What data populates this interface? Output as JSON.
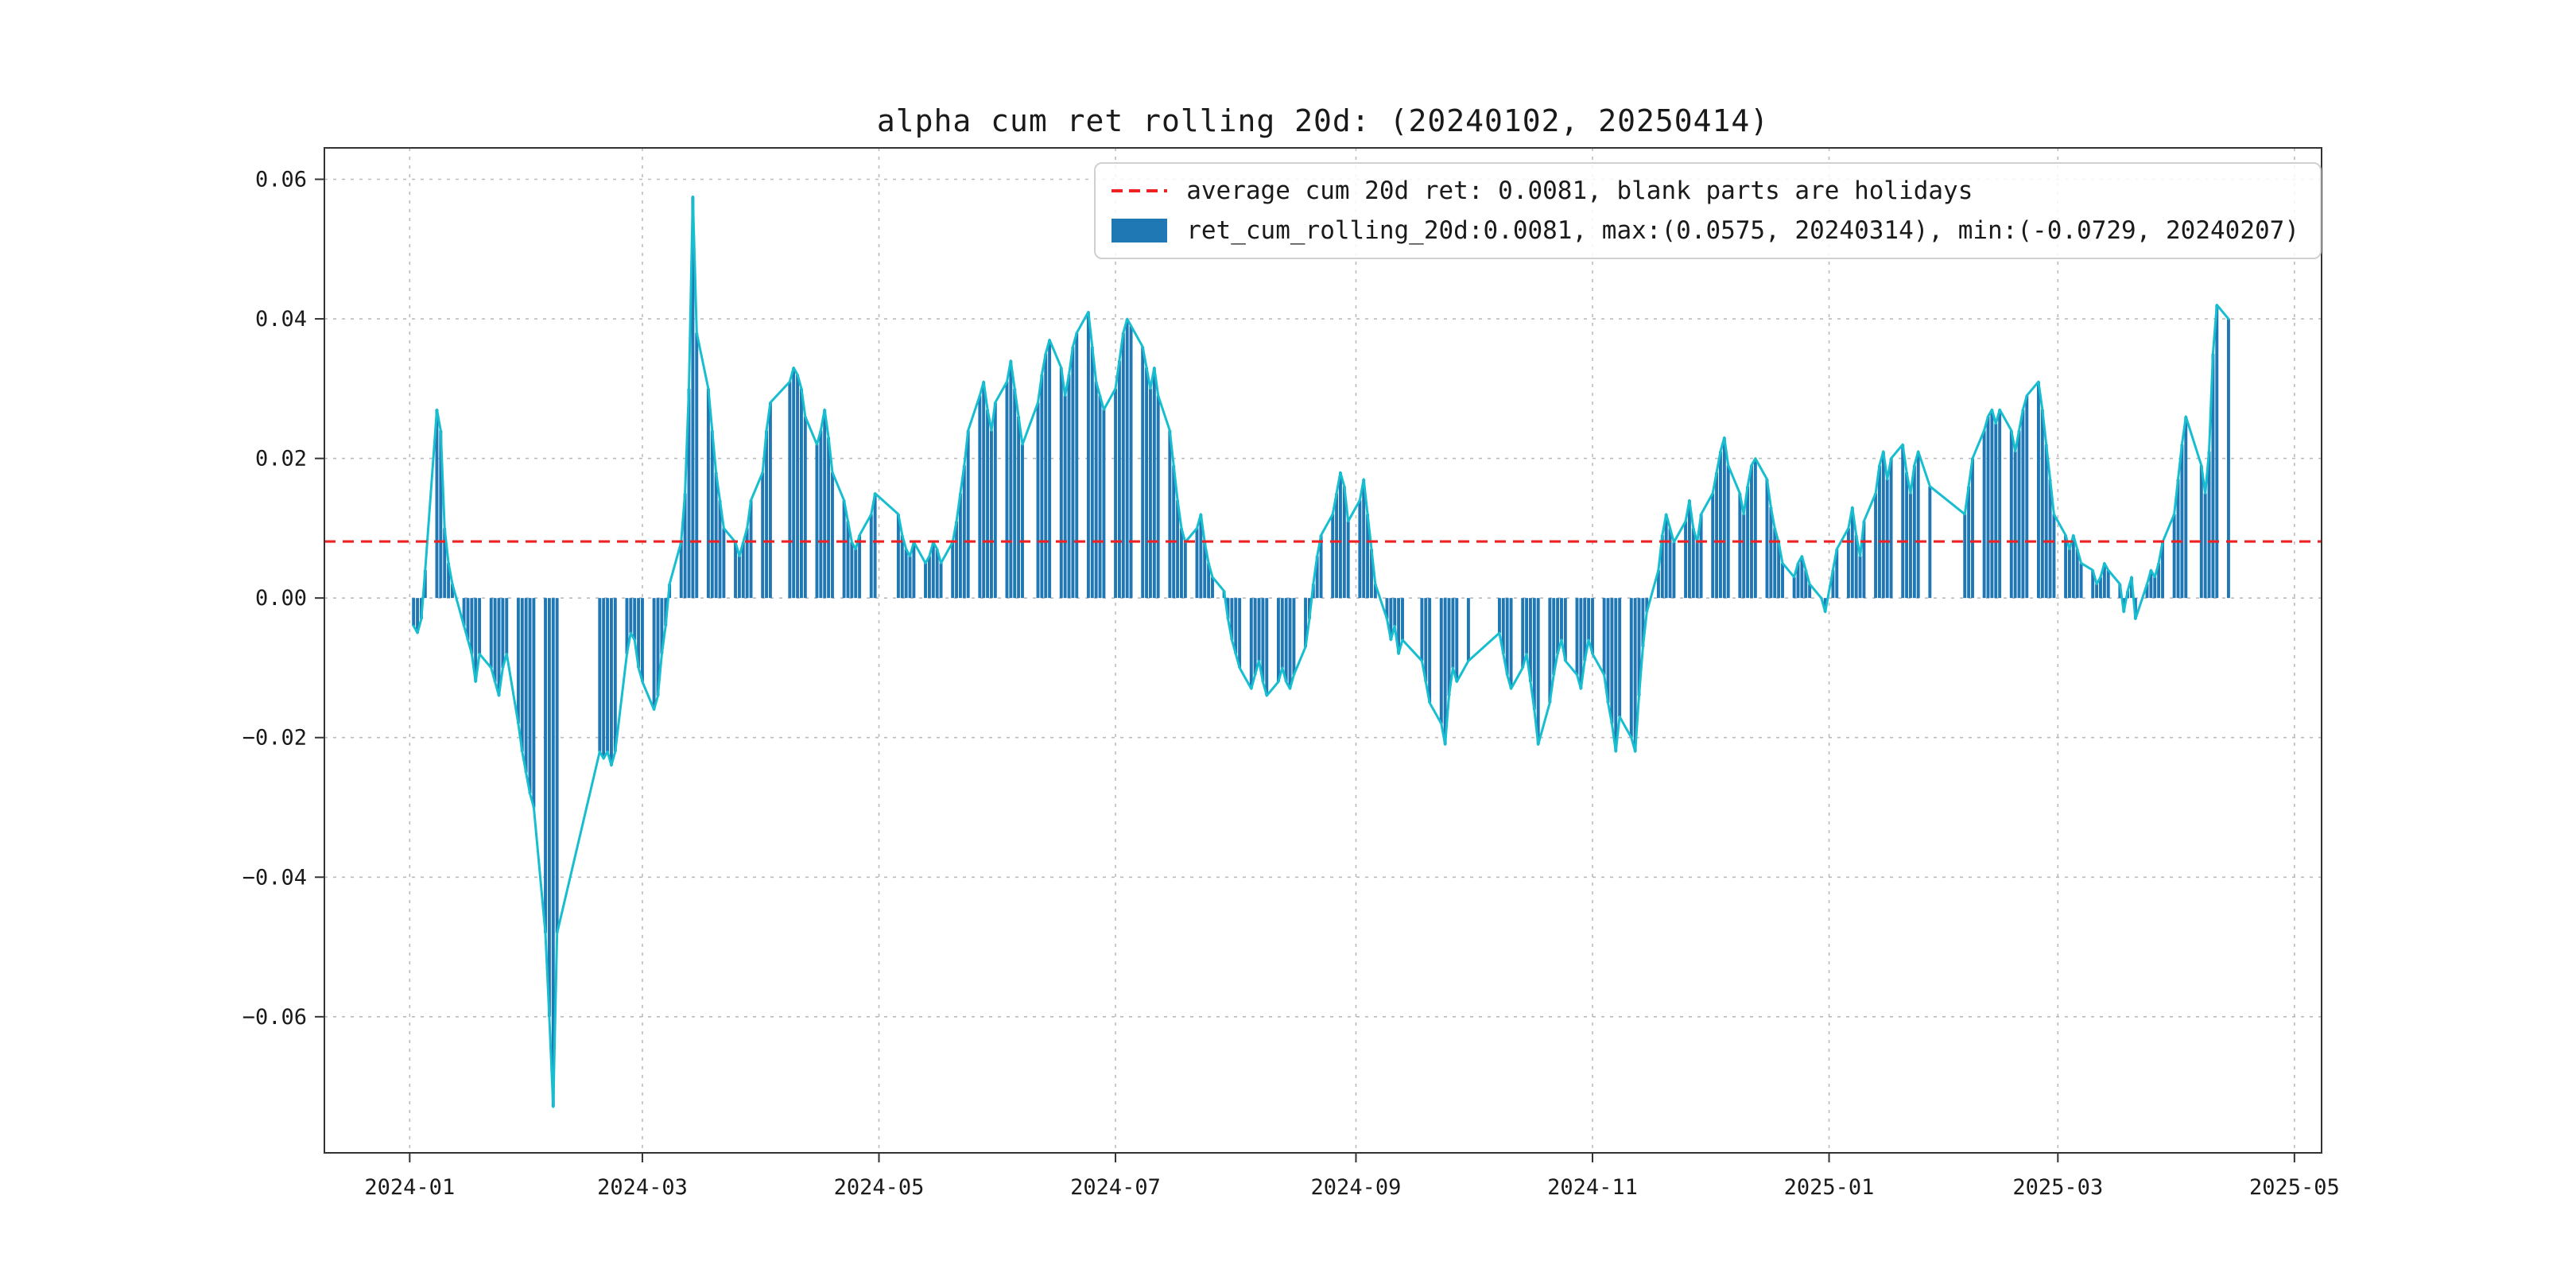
{
  "legend": {
    "avg_label": "average cum 20d ret: 0.0081, blank parts are holidays",
    "series_label": "ret_cum_rolling_20d:0.0081, max:(0.0575, 20240314), min:(-0.0729, 20240207)"
  },
  "colors": {
    "bar": "#1f77b4",
    "line": "#17becf",
    "average": "#ee2222",
    "grid": "#b0b0b0",
    "frame": "#333333",
    "text": "#1a1a1a"
  },
  "chart_data": {
    "type": "bar",
    "overlay": "line",
    "title": "alpha cum ret rolling 20d: (20240102, 20250414)",
    "series_name": "ret_cum_rolling_20d",
    "average": 0.0081,
    "max": {
      "value": 0.0575,
      "date": "20240314"
    },
    "min": {
      "value": -0.0729,
      "date": "20240207"
    },
    "ylim": [
      -0.0795,
      0.0645
    ],
    "y_ticks": [
      0.06,
      0.04,
      0.02,
      0,
      -0.02,
      -0.04,
      -0.06
    ],
    "x_ticks": [
      "2024-01",
      "2024-03",
      "2024-05",
      "2024-07",
      "2024-09",
      "2024-11",
      "2025-01",
      "2025-03",
      "2025-05"
    ],
    "x_tick_dates": [
      "2024-01-01",
      "2024-03-01",
      "2024-05-01",
      "2024-07-01",
      "2024-09-01",
      "2024-11-01",
      "2025-01-01",
      "2025-03-01",
      "2025-05-01"
    ],
    "x_range": [
      "2023-12-10",
      "2025-05-08"
    ],
    "grid": true,
    "legend_position": "upper right",
    "points": [
      [
        "20240102",
        -0.004
      ],
      [
        "20240103",
        -0.005
      ],
      [
        "20240104",
        -0.003
      ],
      [
        "20240105",
        0.004
      ],
      [
        "20240108",
        0.027
      ],
      [
        "20240109",
        0.024
      ],
      [
        "20240110",
        0.01
      ],
      [
        "20240111",
        0.005
      ],
      [
        "20240112",
        0.002
      ],
      [
        "20240115",
        -0.004
      ],
      [
        "20240116",
        -0.006
      ],
      [
        "20240117",
        -0.008
      ],
      [
        "20240118",
        -0.012
      ],
      [
        "20240119",
        -0.008
      ],
      [
        "20240122",
        -0.01
      ],
      [
        "20240123",
        -0.012
      ],
      [
        "20240124",
        -0.014
      ],
      [
        "20240125",
        -0.01
      ],
      [
        "20240126",
        -0.008
      ],
      [
        "20240129",
        -0.018
      ],
      [
        "20240130",
        -0.022
      ],
      [
        "20240131",
        -0.025
      ],
      [
        "20240201",
        -0.028
      ],
      [
        "20240202",
        -0.03
      ],
      [
        "20240205",
        -0.048
      ],
      [
        "20240206",
        -0.06
      ],
      [
        "20240207",
        -0.0729
      ],
      [
        "20240208",
        -0.048
      ],
      [
        "20240219",
        -0.022
      ],
      [
        "20240220",
        -0.023
      ],
      [
        "20240221",
        -0.022
      ],
      [
        "20240222",
        -0.024
      ],
      [
        "20240223",
        -0.022
      ],
      [
        "20240226",
        -0.008
      ],
      [
        "20240227",
        -0.005
      ],
      [
        "20240228",
        -0.006
      ],
      [
        "20240229",
        -0.01
      ],
      [
        "20240301",
        -0.012
      ],
      [
        "20240304",
        -0.016
      ],
      [
        "20240305",
        -0.014
      ],
      [
        "20240306",
        -0.008
      ],
      [
        "20240307",
        -0.004
      ],
      [
        "20240308",
        0.002
      ],
      [
        "20240311",
        0.008
      ],
      [
        "20240312",
        0.015
      ],
      [
        "20240313",
        0.03
      ],
      [
        "20240314",
        0.0575
      ],
      [
        "20240315",
        0.038
      ],
      [
        "20240318",
        0.03
      ],
      [
        "20240319",
        0.024
      ],
      [
        "20240320",
        0.018
      ],
      [
        "20240321",
        0.014
      ],
      [
        "20240322",
        0.01
      ],
      [
        "20240325",
        0.008
      ],
      [
        "20240326",
        0.006
      ],
      [
        "20240327",
        0.008
      ],
      [
        "20240328",
        0.01
      ],
      [
        "20240329",
        0.014
      ],
      [
        "20240401",
        0.018
      ],
      [
        "20240402",
        0.024
      ],
      [
        "20240403",
        0.028
      ],
      [
        "20240408",
        0.031
      ],
      [
        "20240409",
        0.033
      ],
      [
        "20240410",
        0.032
      ],
      [
        "20240411",
        0.03
      ],
      [
        "20240412",
        0.026
      ],
      [
        "20240415",
        0.022
      ],
      [
        "20240416",
        0.024
      ],
      [
        "20240417",
        0.027
      ],
      [
        "20240418",
        0.023
      ],
      [
        "20240419",
        0.018
      ],
      [
        "20240422",
        0.014
      ],
      [
        "20240423",
        0.011
      ],
      [
        "20240424",
        0.008
      ],
      [
        "20240425",
        0.007
      ],
      [
        "20240426",
        0.009
      ],
      [
        "20240429",
        0.012
      ],
      [
        "20240430",
        0.015
      ],
      [
        "20240506",
        0.012
      ],
      [
        "20240507",
        0.009
      ],
      [
        "20240508",
        0.007
      ],
      [
        "20240509",
        0.006
      ],
      [
        "20240510",
        0.008
      ],
      [
        "20240513",
        0.005
      ],
      [
        "20240514",
        0.006
      ],
      [
        "20240515",
        0.008
      ],
      [
        "20240516",
        0.007
      ],
      [
        "20240517",
        0.005
      ],
      [
        "20240520",
        0.008
      ],
      [
        "20240521",
        0.011
      ],
      [
        "20240522",
        0.015
      ],
      [
        "20240523",
        0.019
      ],
      [
        "20240524",
        0.024
      ],
      [
        "20240527",
        0.029
      ],
      [
        "20240528",
        0.031
      ],
      [
        "20240529",
        0.027
      ],
      [
        "20240530",
        0.024
      ],
      [
        "20240531",
        0.028
      ],
      [
        "20240603",
        0.031
      ],
      [
        "20240604",
        0.034
      ],
      [
        "20240605",
        0.03
      ],
      [
        "20240606",
        0.026
      ],
      [
        "20240607",
        0.022
      ],
      [
        "20240611",
        0.028
      ],
      [
        "20240612",
        0.032
      ],
      [
        "20240613",
        0.035
      ],
      [
        "20240614",
        0.037
      ],
      [
        "20240617",
        0.033
      ],
      [
        "20240618",
        0.029
      ],
      [
        "20240619",
        0.032
      ],
      [
        "20240620",
        0.036
      ],
      [
        "20240621",
        0.038
      ],
      [
        "20240624",
        0.041
      ],
      [
        "20240625",
        0.036
      ],
      [
        "20240626",
        0.031
      ],
      [
        "20240627",
        0.029
      ],
      [
        "20240628",
        0.027
      ],
      [
        "20240701",
        0.03
      ],
      [
        "20240702",
        0.034
      ],
      [
        "20240703",
        0.038
      ],
      [
        "20240704",
        0.04
      ],
      [
        "20240705",
        0.039
      ],
      [
        "20240708",
        0.036
      ],
      [
        "20240709",
        0.033
      ],
      [
        "20240710",
        0.03
      ],
      [
        "20240711",
        0.033
      ],
      [
        "20240712",
        0.029
      ],
      [
        "20240715",
        0.024
      ],
      [
        "20240716",
        0.019
      ],
      [
        "20240717",
        0.014
      ],
      [
        "20240718",
        0.01
      ],
      [
        "20240719",
        0.008
      ],
      [
        "20240722",
        0.01
      ],
      [
        "20240723",
        0.012
      ],
      [
        "20240724",
        0.008
      ],
      [
        "20240725",
        0.005
      ],
      [
        "20240726",
        0.003
      ],
      [
        "20240729",
        0.001
      ],
      [
        "20240730",
        -0.003
      ],
      [
        "20240731",
        -0.006
      ],
      [
        "20240801",
        -0.008
      ],
      [
        "20240802",
        -0.01
      ],
      [
        "20240805",
        -0.013
      ],
      [
        "20240806",
        -0.011
      ],
      [
        "20240807",
        -0.009
      ],
      [
        "20240808",
        -0.012
      ],
      [
        "20240809",
        -0.014
      ],
      [
        "20240812",
        -0.012
      ],
      [
        "20240813",
        -0.01
      ],
      [
        "20240814",
        -0.012
      ],
      [
        "20240815",
        -0.013
      ],
      [
        "20240816",
        -0.011
      ],
      [
        "20240819",
        -0.007
      ],
      [
        "20240820",
        -0.003
      ],
      [
        "20240821",
        0.002
      ],
      [
        "20240822",
        0.006
      ],
      [
        "20240823",
        0.009
      ],
      [
        "20240826",
        0.012
      ],
      [
        "20240827",
        0.015
      ],
      [
        "20240828",
        0.018
      ],
      [
        "20240829",
        0.016
      ],
      [
        "20240830",
        0.011
      ],
      [
        "20240902",
        0.014
      ],
      [
        "20240903",
        0.017
      ],
      [
        "20240904",
        0.012
      ],
      [
        "20240905",
        0.007
      ],
      [
        "20240906",
        0.002
      ],
      [
        "20240909",
        -0.003
      ],
      [
        "20240910",
        -0.006
      ],
      [
        "20240911",
        -0.004
      ],
      [
        "20240912",
        -0.008
      ],
      [
        "20240913",
        -0.006
      ],
      [
        "20240918",
        -0.009
      ],
      [
        "20240919",
        -0.012
      ],
      [
        "20240920",
        -0.015
      ],
      [
        "20240923",
        -0.018
      ],
      [
        "20240924",
        -0.021
      ],
      [
        "20240925",
        -0.014
      ],
      [
        "20240926",
        -0.01
      ],
      [
        "20240927",
        -0.012
      ],
      [
        "20240930",
        -0.009
      ],
      [
        "20241008",
        -0.005
      ],
      [
        "20241009",
        -0.008
      ],
      [
        "20241010",
        -0.011
      ],
      [
        "20241011",
        -0.013
      ],
      [
        "20241014",
        -0.01
      ],
      [
        "20241015",
        -0.008
      ],
      [
        "20241016",
        -0.012
      ],
      [
        "20241017",
        -0.016
      ],
      [
        "20241018",
        -0.021
      ],
      [
        "20241021",
        -0.015
      ],
      [
        "20241022",
        -0.011
      ],
      [
        "20241023",
        -0.008
      ],
      [
        "20241024",
        -0.006
      ],
      [
        "20241025",
        -0.009
      ],
      [
        "20241028",
        -0.011
      ],
      [
        "20241029",
        -0.013
      ],
      [
        "20241030",
        -0.009
      ],
      [
        "20241031",
        -0.006
      ],
      [
        "20241101",
        -0.008
      ],
      [
        "20241104",
        -0.011
      ],
      [
        "20241105",
        -0.015
      ],
      [
        "20241106",
        -0.018
      ],
      [
        "20241107",
        -0.022
      ],
      [
        "20241108",
        -0.017
      ],
      [
        "20241111",
        -0.02
      ],
      [
        "20241112",
        -0.022
      ],
      [
        "20241113",
        -0.014
      ],
      [
        "20241114",
        -0.007
      ],
      [
        "20241115",
        -0.002
      ],
      [
        "20241118",
        0.004
      ],
      [
        "20241119",
        0.009
      ],
      [
        "20241120",
        0.012
      ],
      [
        "20241121",
        0.01
      ],
      [
        "20241122",
        0.008
      ],
      [
        "20241125",
        0.011
      ],
      [
        "20241126",
        0.014
      ],
      [
        "20241127",
        0.01
      ],
      [
        "20241128",
        0.008
      ],
      [
        "20241129",
        0.012
      ],
      [
        "20241202",
        0.015
      ],
      [
        "20241203",
        0.018
      ],
      [
        "20241204",
        0.021
      ],
      [
        "20241205",
        0.023
      ],
      [
        "20241206",
        0.019
      ],
      [
        "20241209",
        0.015
      ],
      [
        "20241210",
        0.012
      ],
      [
        "20241211",
        0.016
      ],
      [
        "20241212",
        0.019
      ],
      [
        "20241213",
        0.02
      ],
      [
        "20241216",
        0.017
      ],
      [
        "20241217",
        0.013
      ],
      [
        "20241218",
        0.01
      ],
      [
        "20241219",
        0.008
      ],
      [
        "20241220",
        0.005
      ],
      [
        "20241223",
        0.003
      ],
      [
        "20241224",
        0.005
      ],
      [
        "20241225",
        0.006
      ],
      [
        "20241226",
        0.004
      ],
      [
        "20241227",
        0.002
      ],
      [
        "20241230",
        0.0
      ],
      [
        "20241231",
        -0.002
      ],
      [
        "20250102",
        0.004
      ],
      [
        "20250103",
        0.007
      ],
      [
        "20250106",
        0.01
      ],
      [
        "20250107",
        0.013
      ],
      [
        "20250108",
        0.009
      ],
      [
        "20250109",
        0.006
      ],
      [
        "20250110",
        0.011
      ],
      [
        "20250113",
        0.015
      ],
      [
        "20250114",
        0.019
      ],
      [
        "20250115",
        0.021
      ],
      [
        "20250116",
        0.017
      ],
      [
        "20250117",
        0.02
      ],
      [
        "20250120",
        0.022
      ],
      [
        "20250121",
        0.018
      ],
      [
        "20250122",
        0.015
      ],
      [
        "20250123",
        0.019
      ],
      [
        "20250124",
        0.021
      ],
      [
        "20250127",
        0.016
      ],
      [
        "20250205",
        0.012
      ],
      [
        "20250206",
        0.016
      ],
      [
        "20250207",
        0.02
      ],
      [
        "20250210",
        0.024
      ],
      [
        "20250211",
        0.026
      ],
      [
        "20250212",
        0.027
      ],
      [
        "20250213",
        0.025
      ],
      [
        "20250214",
        0.027
      ],
      [
        "20250217",
        0.024
      ],
      [
        "20250218",
        0.021
      ],
      [
        "20250219",
        0.024
      ],
      [
        "20250220",
        0.027
      ],
      [
        "20250221",
        0.029
      ],
      [
        "20250224",
        0.031
      ],
      [
        "20250225",
        0.027
      ],
      [
        "20250226",
        0.022
      ],
      [
        "20250227",
        0.017
      ],
      [
        "20250228",
        0.012
      ],
      [
        "20250303",
        0.009
      ],
      [
        "20250304",
        0.007
      ],
      [
        "20250305",
        0.009
      ],
      [
        "20250306",
        0.007
      ],
      [
        "20250307",
        0.005
      ],
      [
        "20250310",
        0.004
      ],
      [
        "20250311",
        0.002
      ],
      [
        "20250312",
        0.003
      ],
      [
        "20250313",
        0.005
      ],
      [
        "20250314",
        0.004
      ],
      [
        "20250317",
        0.002
      ],
      [
        "20250318",
        -0.002
      ],
      [
        "20250319",
        0.001
      ],
      [
        "20250320",
        0.003
      ],
      [
        "20250321",
        -0.003
      ],
      [
        "20250324",
        0.002
      ],
      [
        "20250325",
        0.004
      ],
      [
        "20250326",
        0.003
      ],
      [
        "20250327",
        0.005
      ],
      [
        "20250328",
        0.008
      ],
      [
        "20250331",
        0.012
      ],
      [
        "20250401",
        0.017
      ],
      [
        "20250402",
        0.022
      ],
      [
        "20250403",
        0.026
      ],
      [
        "20250407",
        0.019
      ],
      [
        "20250408",
        0.015
      ],
      [
        "20250409",
        0.021
      ],
      [
        "20250410",
        0.035
      ],
      [
        "20250411",
        0.042
      ],
      [
        "20250414",
        0.04
      ]
    ]
  }
}
